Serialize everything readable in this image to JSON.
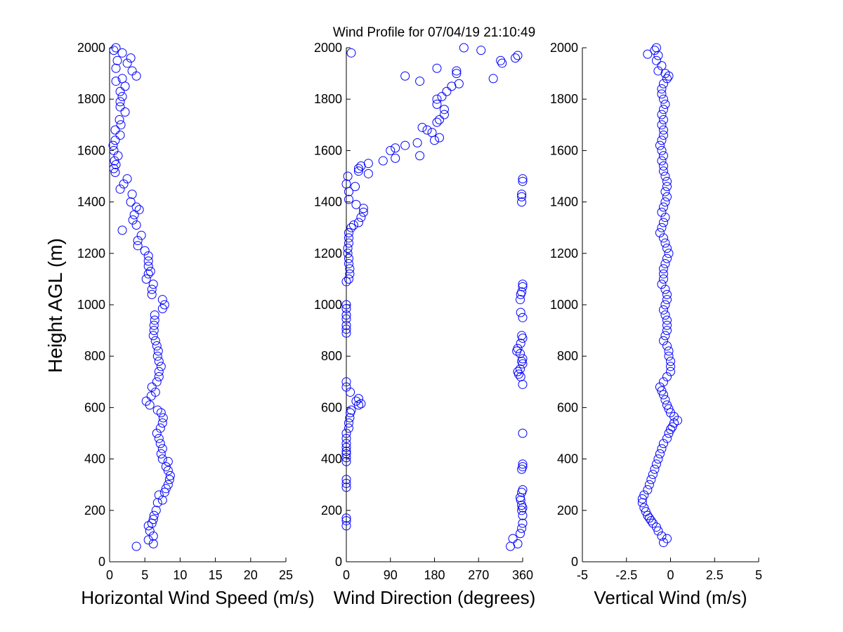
{
  "title": "Wind Profile for  07/04/19 21:10:49",
  "y_axis_label": "Height AGL (m)",
  "marker_color": "#0000ff",
  "chart_data": [
    {
      "type": "scatter",
      "name": "horizontal-wind-speed",
      "xlabel": "Horizontal Wind Speed (m/s)",
      "ylabel": "Height AGL (m)",
      "xlim": [
        0,
        25
      ],
      "ylim": [
        0,
        2000
      ],
      "xticks": [
        0,
        5,
        10,
        15,
        20,
        25
      ],
      "yticks": [
        0,
        200,
        400,
        600,
        800,
        1000,
        1200,
        1400,
        1600,
        1800,
        2000
      ],
      "points": [
        [
          3.8,
          60
        ],
        [
          5.5,
          85
        ],
        [
          6.2,
          70
        ],
        [
          6.2,
          100
        ],
        [
          5.7,
          120
        ],
        [
          5.5,
          140
        ],
        [
          6.0,
          150
        ],
        [
          6.2,
          165
        ],
        [
          6.3,
          180
        ],
        [
          6.6,
          200
        ],
        [
          6.8,
          230
        ],
        [
          7.5,
          240
        ],
        [
          7.0,
          260
        ],
        [
          7.8,
          270
        ],
        [
          8.0,
          285
        ],
        [
          8.3,
          300
        ],
        [
          8.5,
          320
        ],
        [
          8.6,
          335
        ],
        [
          8.3,
          355
        ],
        [
          8.0,
          370
        ],
        [
          8.3,
          390
        ],
        [
          7.5,
          400
        ],
        [
          7.3,
          420
        ],
        [
          7.5,
          440
        ],
        [
          7.2,
          460
        ],
        [
          7.0,
          480
        ],
        [
          6.7,
          500
        ],
        [
          7.2,
          520
        ],
        [
          7.5,
          540
        ],
        [
          7.6,
          560
        ],
        [
          7.3,
          580
        ],
        [
          6.8,
          590
        ],
        [
          5.7,
          610
        ],
        [
          5.2,
          625
        ],
        [
          5.9,
          645
        ],
        [
          6.5,
          660
        ],
        [
          6.0,
          680
        ],
        [
          6.7,
          700
        ],
        [
          7.0,
          720
        ],
        [
          7.0,
          740
        ],
        [
          7.3,
          760
        ],
        [
          7.0,
          780
        ],
        [
          6.8,
          800
        ],
        [
          6.9,
          820
        ],
        [
          6.7,
          840
        ],
        [
          6.5,
          860
        ],
        [
          6.2,
          880
        ],
        [
          6.3,
          900
        ],
        [
          6.3,
          920
        ],
        [
          6.4,
          940
        ],
        [
          6.4,
          960
        ],
        [
          7.5,
          985
        ],
        [
          7.8,
          1000
        ],
        [
          7.5,
          1020
        ],
        [
          6.0,
          1040
        ],
        [
          6.0,
          1060
        ],
        [
          6.2,
          1080
        ],
        [
          5.2,
          1100
        ],
        [
          5.5,
          1120
        ],
        [
          5.8,
          1130
        ],
        [
          5.5,
          1150
        ],
        [
          5.5,
          1170
        ],
        [
          5.5,
          1190
        ],
        [
          5.0,
          1210
        ],
        [
          4.0,
          1230
        ],
        [
          4.0,
          1250
        ],
        [
          4.5,
          1270
        ],
        [
          1.8,
          1290
        ],
        [
          3.8,
          1310
        ],
        [
          3.3,
          1330
        ],
        [
          3.5,
          1350
        ],
        [
          4.2,
          1370
        ],
        [
          3.8,
          1380
        ],
        [
          3.0,
          1400
        ],
        [
          3.2,
          1430
        ],
        [
          1.5,
          1450
        ],
        [
          2.0,
          1470
        ],
        [
          2.5,
          1490
        ],
        [
          0.8,
          1515
        ],
        [
          0.6,
          1530
        ],
        [
          0.9,
          1545
        ],
        [
          0.7,
          1560
        ],
        [
          1.2,
          1580
        ],
        [
          0.6,
          1600
        ],
        [
          0.5,
          1620
        ],
        [
          0.8,
          1640
        ],
        [
          1.5,
          1660
        ],
        [
          0.8,
          1680
        ],
        [
          1.6,
          1700
        ],
        [
          1.4,
          1720
        ],
        [
          2.2,
          1750
        ],
        [
          1.5,
          1770
        ],
        [
          1.5,
          1790
        ],
        [
          1.8,
          1810
        ],
        [
          1.5,
          1830
        ],
        [
          2.2,
          1850
        ],
        [
          0.9,
          1870
        ],
        [
          1.8,
          1880
        ],
        [
          3.8,
          1890
        ],
        [
          3.2,
          1910
        ],
        [
          0.9,
          1920
        ],
        [
          2.5,
          1940
        ],
        [
          1.1,
          1950
        ],
        [
          3.0,
          1960
        ],
        [
          1.8,
          1980
        ],
        [
          0.6,
          1990
        ],
        [
          0.9,
          2000
        ]
      ]
    },
    {
      "type": "scatter",
      "name": "wind-direction",
      "xlabel": "Wind Direction (degrees)",
      "ylabel": "",
      "xlim": [
        0,
        360
      ],
      "ylim": [
        0,
        2000
      ],
      "xticks": [
        0,
        90,
        180,
        270,
        360
      ],
      "yticks": [
        0,
        200,
        400,
        600,
        800,
        1000,
        1200,
        1400,
        1600,
        1800,
        2000
      ],
      "points": [
        [
          0,
          140
        ],
        [
          0,
          160
        ],
        [
          0,
          170
        ],
        [
          0,
          290
        ],
        [
          0,
          305
        ],
        [
          0,
          320
        ],
        [
          0,
          390
        ],
        [
          0,
          405
        ],
        [
          0,
          420
        ],
        [
          0,
          430
        ],
        [
          0,
          445
        ],
        [
          0,
          460
        ],
        [
          0,
          480
        ],
        [
          0,
          500
        ],
        [
          5,
          520
        ],
        [
          5,
          540
        ],
        [
          7,
          560
        ],
        [
          8,
          580
        ],
        [
          10,
          590
        ],
        [
          25,
          610
        ],
        [
          30,
          615
        ],
        [
          20,
          625
        ],
        [
          25,
          635
        ],
        [
          8,
          660
        ],
        [
          0,
          680
        ],
        [
          0,
          700
        ],
        [
          0,
          890
        ],
        [
          0,
          905
        ],
        [
          0,
          920
        ],
        [
          0,
          945
        ],
        [
          0,
          960
        ],
        [
          0,
          985
        ],
        [
          0,
          1000
        ],
        [
          0,
          1090
        ],
        [
          5,
          1100
        ],
        [
          7,
          1120
        ],
        [
          7,
          1140
        ],
        [
          5,
          1160
        ],
        [
          5,
          1180
        ],
        [
          3,
          1200
        ],
        [
          3,
          1220
        ],
        [
          5,
          1240
        ],
        [
          5,
          1260
        ],
        [
          5,
          1280
        ],
        [
          10,
          1300
        ],
        [
          15,
          1310
        ],
        [
          25,
          1320
        ],
        [
          30,
          1340
        ],
        [
          35,
          1360
        ],
        [
          35,
          1375
        ],
        [
          20,
          1390
        ],
        [
          5,
          1410
        ],
        [
          5,
          1440
        ],
        [
          18,
          1460
        ],
        [
          0,
          1470
        ],
        [
          3,
          1500
        ],
        [
          25,
          1520
        ],
        [
          25,
          1530
        ],
        [
          30,
          1540
        ],
        [
          45,
          1550
        ],
        [
          45,
          1510
        ],
        [
          75,
          1560
        ],
        [
          100,
          1570
        ],
        [
          90,
          1600
        ],
        [
          100,
          1610
        ],
        [
          120,
          1620
        ],
        [
          150,
          1580
        ],
        [
          145,
          1630
        ],
        [
          155,
          1690
        ],
        [
          165,
          1680
        ],
        [
          175,
          1670
        ],
        [
          180,
          1640
        ],
        [
          190,
          1650
        ],
        [
          185,
          1710
        ],
        [
          190,
          1720
        ],
        [
          200,
          1740
        ],
        [
          200,
          1760
        ],
        [
          185,
          1780
        ],
        [
          185,
          1800
        ],
        [
          195,
          1810
        ],
        [
          205,
          1830
        ],
        [
          215,
          1850
        ],
        [
          230,
          1860
        ],
        [
          225,
          1900
        ],
        [
          225,
          1910
        ],
        [
          185,
          1920
        ],
        [
          120,
          1890
        ],
        [
          150,
          1870
        ],
        [
          10,
          1980
        ],
        [
          240,
          2000
        ],
        [
          275,
          1990
        ],
        [
          300,
          1880
        ],
        [
          315,
          1950
        ],
        [
          318,
          1940
        ],
        [
          345,
          1960
        ],
        [
          350,
          1970
        ],
        [
          360,
          1490
        ],
        [
          360,
          1480
        ],
        [
          358,
          1430
        ],
        [
          358,
          1420
        ],
        [
          358,
          1400
        ],
        [
          360,
          1080
        ],
        [
          360,
          1070
        ],
        [
          358,
          1050
        ],
        [
          356,
          1040
        ],
        [
          355,
          1020
        ],
        [
          356,
          970
        ],
        [
          360,
          950
        ],
        [
          358,
          880
        ],
        [
          360,
          870
        ],
        [
          356,
          850
        ],
        [
          350,
          830
        ],
        [
          348,
          820
        ],
        [
          355,
          810
        ],
        [
          360,
          790
        ],
        [
          358,
          780
        ],
        [
          360,
          770
        ],
        [
          355,
          750
        ],
        [
          350,
          740
        ],
        [
          352,
          730
        ],
        [
          356,
          720
        ],
        [
          360,
          690
        ],
        [
          360,
          500
        ],
        [
          360,
          380
        ],
        [
          360,
          370
        ],
        [
          358,
          360
        ],
        [
          360,
          280
        ],
        [
          358,
          270
        ],
        [
          355,
          250
        ],
        [
          356,
          240
        ],
        [
          358,
          220
        ],
        [
          360,
          210
        ],
        [
          358,
          200
        ],
        [
          360,
          180
        ],
        [
          360,
          150
        ],
        [
          358,
          130
        ],
        [
          355,
          110
        ],
        [
          340,
          90
        ],
        [
          350,
          70
        ],
        [
          335,
          60
        ]
      ]
    },
    {
      "type": "scatter",
      "name": "vertical-wind",
      "xlabel": "Vertical Wind (m/s)",
      "ylabel": "",
      "xlim": [
        -5,
        5
      ],
      "ylim": [
        0,
        2000
      ],
      "xticks": [
        -5,
        -2.5,
        0,
        2.5,
        5
      ],
      "xtick_labels": [
        "-5",
        "-2.5",
        "0",
        "2.5",
        "5"
      ],
      "yticks": [
        0,
        200,
        400,
        600,
        800,
        1000,
        1200,
        1400,
        1600,
        1800,
        2000
      ],
      "points": [
        [
          -0.2,
          90
        ],
        [
          -0.4,
          75
        ],
        [
          -0.5,
          100
        ],
        [
          -0.7,
          120
        ],
        [
          -0.8,
          135
        ],
        [
          -1.0,
          150
        ],
        [
          -1.1,
          160
        ],
        [
          -1.2,
          170
        ],
        [
          -1.3,
          180
        ],
        [
          -1.4,
          195
        ],
        [
          -1.5,
          210
        ],
        [
          -1.6,
          230
        ],
        [
          -1.6,
          245
        ],
        [
          -1.5,
          260
        ],
        [
          -1.3,
          280
        ],
        [
          -1.2,
          300
        ],
        [
          -1.1,
          320
        ],
        [
          -1.0,
          340
        ],
        [
          -0.9,
          360
        ],
        [
          -0.8,
          380
        ],
        [
          -0.7,
          400
        ],
        [
          -0.6,
          420
        ],
        [
          -0.5,
          440
        ],
        [
          -0.4,
          460
        ],
        [
          -0.2,
          480
        ],
        [
          -0.1,
          500
        ],
        [
          0.0,
          515
        ],
        [
          0.1,
          525
        ],
        [
          0.2,
          540
        ],
        [
          0.4,
          550
        ],
        [
          0.2,
          565
        ],
        [
          0.0,
          580
        ],
        [
          -0.1,
          595
        ],
        [
          -0.2,
          610
        ],
        [
          -0.3,
          630
        ],
        [
          -0.4,
          650
        ],
        [
          -0.5,
          665
        ],
        [
          -0.6,
          680
        ],
        [
          -0.4,
          700
        ],
        [
          -0.2,
          720
        ],
        [
          0.0,
          740
        ],
        [
          0.0,
          760
        ],
        [
          0.0,
          780
        ],
        [
          -0.1,
          800
        ],
        [
          -0.1,
          820
        ],
        [
          -0.2,
          840
        ],
        [
          -0.4,
          860
        ],
        [
          -0.3,
          880
        ],
        [
          -0.2,
          900
        ],
        [
          -0.2,
          920
        ],
        [
          -0.2,
          940
        ],
        [
          -0.3,
          960
        ],
        [
          -0.4,
          980
        ],
        [
          -0.3,
          1000
        ],
        [
          -0.2,
          1020
        ],
        [
          -0.2,
          1040
        ],
        [
          -0.3,
          1060
        ],
        [
          -0.5,
          1080
        ],
        [
          -0.4,
          1100
        ],
        [
          -0.4,
          1120
        ],
        [
          -0.4,
          1140
        ],
        [
          -0.3,
          1160
        ],
        [
          -0.2,
          1180
        ],
        [
          -0.1,
          1200
        ],
        [
          -0.2,
          1220
        ],
        [
          -0.3,
          1240
        ],
        [
          -0.4,
          1260
        ],
        [
          -0.6,
          1280
        ],
        [
          -0.5,
          1300
        ],
        [
          -0.4,
          1320
        ],
        [
          -0.3,
          1340
        ],
        [
          -0.5,
          1360
        ],
        [
          -0.4,
          1380
        ],
        [
          -0.3,
          1400
        ],
        [
          -0.2,
          1420
        ],
        [
          -0.3,
          1440
        ],
        [
          -0.2,
          1460
        ],
        [
          -0.2,
          1480
        ],
        [
          -0.3,
          1500
        ],
        [
          -0.4,
          1520
        ],
        [
          -0.4,
          1540
        ],
        [
          -0.5,
          1560
        ],
        [
          -0.4,
          1580
        ],
        [
          -0.5,
          1600
        ],
        [
          -0.6,
          1620
        ],
        [
          -0.5,
          1640
        ],
        [
          -0.4,
          1660
        ],
        [
          -0.4,
          1680
        ],
        [
          -0.5,
          1700
        ],
        [
          -0.4,
          1720
        ],
        [
          -0.5,
          1740
        ],
        [
          -0.4,
          1760
        ],
        [
          -0.3,
          1780
        ],
        [
          -0.4,
          1800
        ],
        [
          -0.5,
          1820
        ],
        [
          -0.5,
          1840
        ],
        [
          -0.4,
          1860
        ],
        [
          -0.2,
          1880
        ],
        [
          -0.1,
          1890
        ],
        [
          -0.3,
          1900
        ],
        [
          -0.7,
          1910
        ],
        [
          -0.5,
          1930
        ],
        [
          -0.8,
          1950
        ],
        [
          -0.7,
          1970
        ],
        [
          -1.3,
          1975
        ],
        [
          -0.9,
          1990
        ],
        [
          -0.8,
          2000
        ]
      ]
    }
  ]
}
